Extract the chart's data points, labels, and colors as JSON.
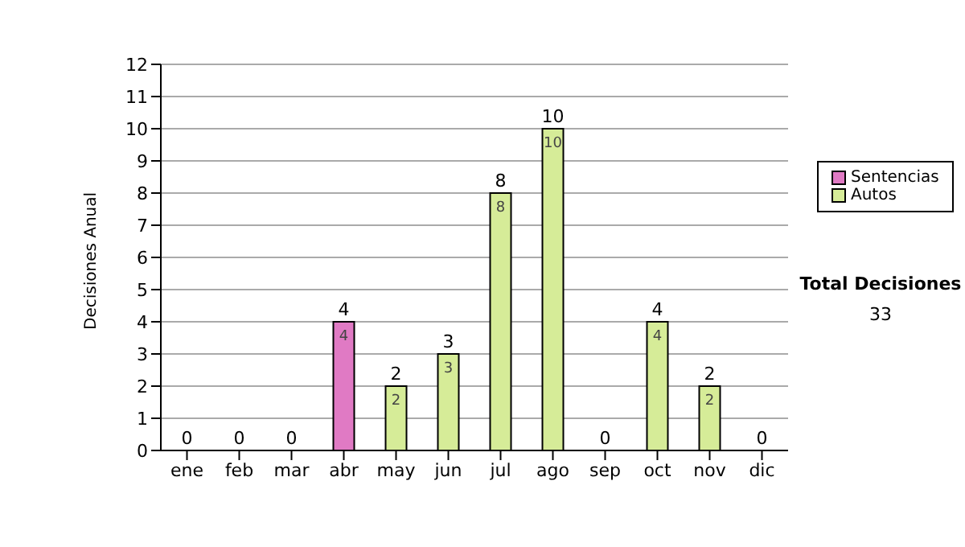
{
  "chart_data": {
    "type": "bar",
    "stacked": true,
    "ylabel": "Decisiones Anual",
    "categories": [
      "ene",
      "feb",
      "mar",
      "abr",
      "may",
      "jun",
      "jul",
      "ago",
      "sep",
      "oct",
      "nov",
      "dic"
    ],
    "series": [
      {
        "name": "Sentencias",
        "color": "#e07ac4",
        "values": [
          0,
          0,
          0,
          4,
          0,
          0,
          0,
          0,
          0,
          0,
          0,
          0
        ],
        "value_labels": [
          null,
          null,
          null,
          "4",
          null,
          null,
          null,
          null,
          null,
          null,
          null,
          null
        ]
      },
      {
        "name": "Autos",
        "color": "#d6ec98",
        "values": [
          0,
          0,
          0,
          0,
          2,
          3,
          8,
          10,
          0,
          4,
          2,
          0
        ],
        "value_labels": [
          null,
          null,
          null,
          null,
          "2",
          "3",
          "8",
          "10",
          null,
          "4",
          "2",
          null
        ]
      }
    ],
    "totals": [
      "0",
      "0",
      "0",
      "4",
      "2",
      "3",
      "8",
      "10",
      "0",
      "4",
      "2",
      "0"
    ],
    "ylim": [
      0,
      12
    ],
    "yticks": [
      0,
      1,
      2,
      3,
      4,
      5,
      6,
      7,
      8,
      9,
      10,
      11,
      12
    ],
    "grid": "y",
    "legend": "right",
    "annotations": [
      "Total Decisiones",
      "33"
    ]
  }
}
